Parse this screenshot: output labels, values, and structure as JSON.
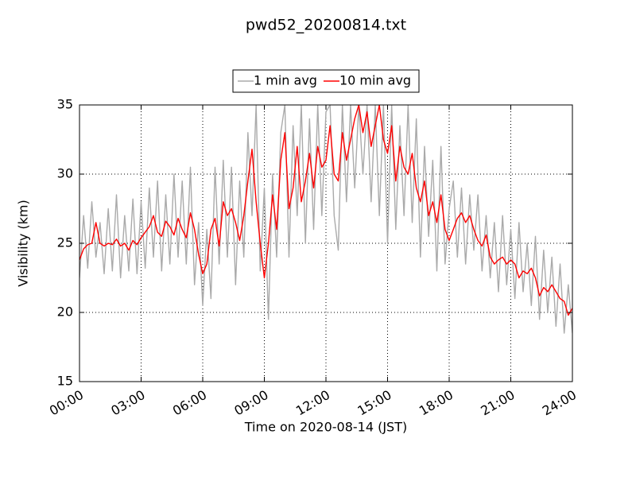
{
  "chart_data": {
    "type": "line",
    "title": "pwd52_20200814.txt",
    "x_label": "Time on 2020-08-14 (JST)",
    "y_label": "Visibility (km)",
    "xlim": [
      0,
      24
    ],
    "xticks": [
      {
        "value": 0,
        "label": "00:00"
      },
      {
        "value": 3,
        "label": "03:00"
      },
      {
        "value": 6,
        "label": "06:00"
      },
      {
        "value": 9,
        "label": "09:00"
      },
      {
        "value": 12,
        "label": "12:00"
      },
      {
        "value": 15,
        "label": "15:00"
      },
      {
        "value": 18,
        "label": "18:00"
      },
      {
        "value": 21,
        "label": "21:00"
      },
      {
        "value": 24,
        "label": "24:00"
      }
    ],
    "ylim": [
      15,
      35
    ],
    "yticks": [
      15,
      20,
      25,
      30,
      35
    ],
    "grid": true,
    "legend": "top",
    "x": [
      0,
      0.2,
      0.4,
      0.6,
      0.8,
      1,
      1.2,
      1.4,
      1.6,
      1.8,
      2,
      2.2,
      2.4,
      2.6,
      2.8,
      3,
      3.2,
      3.4,
      3.6,
      3.8,
      4,
      4.2,
      4.4,
      4.6,
      4.8,
      5,
      5.2,
      5.4,
      5.6,
      5.8,
      6,
      6.2,
      6.4,
      6.6,
      6.8,
      7,
      7.2,
      7.4,
      7.6,
      7.8,
      8,
      8.2,
      8.4,
      8.6,
      8.8,
      9,
      9.2,
      9.4,
      9.6,
      9.8,
      10,
      10.2,
      10.4,
      10.6,
      10.8,
      11,
      11.2,
      11.4,
      11.6,
      11.8,
      12,
      12.2,
      12.4,
      12.6,
      12.8,
      13,
      13.2,
      13.4,
      13.6,
      13.8,
      14,
      14.2,
      14.4,
      14.6,
      14.8,
      15,
      15.2,
      15.4,
      15.6,
      15.8,
      16,
      16.2,
      16.4,
      16.6,
      16.8,
      17,
      17.2,
      17.4,
      17.6,
      17.8,
      18,
      18.2,
      18.4,
      18.6,
      18.8,
      19,
      19.2,
      19.4,
      19.6,
      19.8,
      20,
      20.2,
      20.4,
      20.6,
      20.8,
      21,
      21.2,
      21.4,
      21.6,
      21.8,
      22,
      22.2,
      22.4,
      22.6,
      22.8,
      23,
      23.2,
      23.4,
      23.6,
      23.8,
      24
    ],
    "series": [
      {
        "name": "1 min avg",
        "color": "#aaaaaa",
        "values": [
          22.5,
          27.0,
          23.2,
          28.0,
          24.0,
          26.5,
          22.8,
          27.5,
          23.0,
          28.5,
          22.5,
          27.0,
          23.0,
          28.2,
          22.8,
          28.0,
          23.2,
          29.0,
          24.0,
          29.5,
          23.0,
          28.5,
          23.5,
          30.0,
          24.0,
          29.5,
          23.5,
          30.5,
          22.0,
          26.5,
          20.5,
          26.0,
          21.0,
          30.5,
          23.5,
          31.0,
          24.0,
          30.5,
          22.0,
          29.5,
          24.0,
          33.0,
          27.0,
          35.0,
          23.0,
          29.0,
          19.5,
          30.0,
          24.0,
          33.0,
          35.0,
          24.0,
          33.5,
          27.0,
          35.0,
          25.0,
          34.0,
          26.0,
          35.0,
          27.0,
          34.5,
          35.0,
          27.0,
          24.5,
          35.0,
          28.0,
          35.0,
          29.0,
          35.0,
          30.0,
          35.0,
          28.0,
          35.0,
          27.0,
          35.0,
          25.0,
          35.0,
          26.0,
          33.5,
          27.0,
          35.0,
          26.5,
          34.0,
          24.0,
          32.0,
          25.5,
          31.0,
          23.0,
          32.0,
          23.5,
          27.5,
          29.5,
          24.0,
          29.0,
          23.5,
          28.5,
          24.5,
          28.5,
          23.0,
          27.0,
          22.5,
          26.5,
          21.5,
          27.0,
          22.0,
          26.0,
          21.0,
          26.5,
          21.5,
          25.0,
          20.5,
          25.5,
          19.5,
          24.5,
          20.0,
          24.0,
          19.0,
          23.5,
          18.5,
          22.0,
          18.5
        ]
      },
      {
        "name": "10 min avg",
        "color": "#ff0000",
        "values": [
          23.8,
          24.6,
          24.9,
          25.0,
          26.5,
          25.0,
          24.8,
          25.0,
          24.9,
          25.3,
          24.8,
          25.0,
          24.5,
          25.2,
          24.9,
          25.4,
          25.8,
          26.2,
          27.0,
          25.8,
          25.5,
          26.6,
          26.2,
          25.6,
          26.8,
          26.0,
          25.4,
          27.2,
          26.0,
          24.2,
          22.8,
          23.5,
          26.0,
          26.8,
          24.8,
          28.0,
          27.0,
          27.5,
          26.5,
          25.2,
          27.0,
          29.5,
          31.8,
          28.0,
          25.0,
          22.5,
          25.0,
          28.5,
          26.0,
          31.0,
          33.0,
          27.5,
          29.0,
          32.0,
          28.0,
          29.5,
          31.5,
          29.0,
          32.0,
          30.5,
          31.0,
          33.5,
          30.0,
          29.5,
          33.0,
          31.0,
          32.5,
          34.0,
          35.0,
          33.0,
          34.5,
          32.0,
          33.5,
          35.0,
          32.5,
          31.5,
          33.5,
          29.5,
          32.0,
          30.5,
          30.0,
          31.5,
          29.0,
          28.0,
          29.5,
          27.0,
          28.0,
          26.5,
          28.5,
          26.0,
          25.2,
          26.0,
          26.8,
          27.2,
          26.5,
          27.0,
          26.0,
          25.2,
          24.8,
          25.6,
          24.0,
          23.5,
          23.8,
          24.0,
          23.5,
          23.8,
          23.5,
          22.5,
          23.0,
          22.8,
          23.2,
          22.5,
          21.2,
          21.8,
          21.5,
          22.0,
          21.5,
          21.0,
          20.8,
          19.8,
          20.3
        ]
      }
    ]
  }
}
